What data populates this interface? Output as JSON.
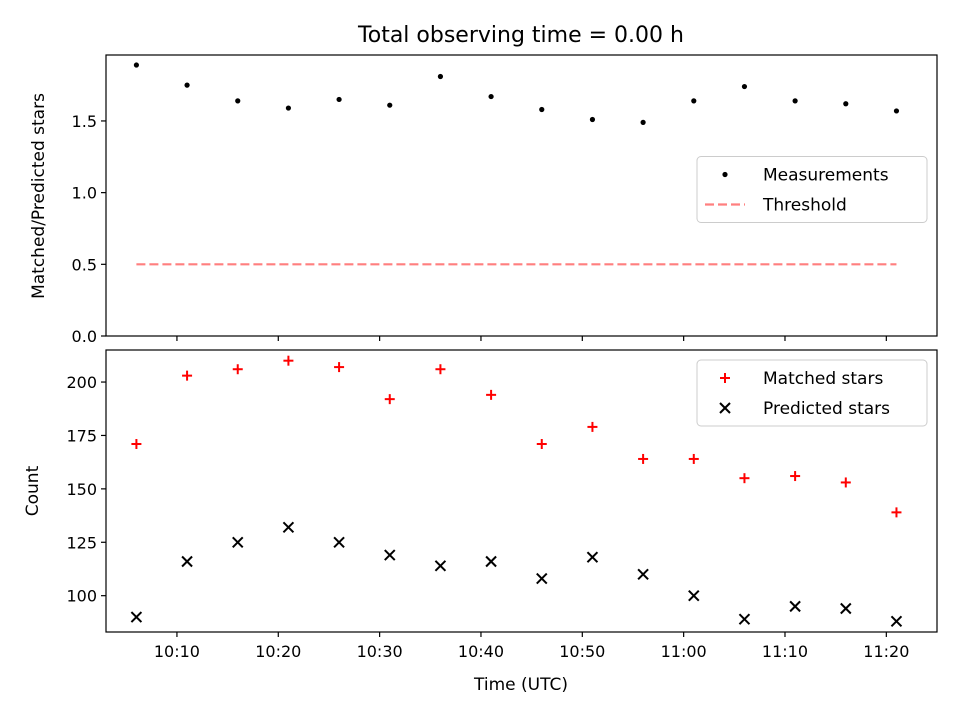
{
  "title": "Total observing time = 0.00 h",
  "chart_data": [
    {
      "type": "scatter",
      "ylabel": "Matched/Predicted stars",
      "ylim": [
        0,
        1.96
      ],
      "yticks": [
        0.0,
        0.5,
        1.0,
        1.5
      ],
      "ytick_labels": [
        "0.0",
        "0.5",
        "1.0",
        "1.5"
      ],
      "legend_position": "center-right",
      "series": [
        {
          "name": "Measurements",
          "marker": "dot",
          "color": "#000000",
          "x": [
            "10:06",
            "10:11",
            "10:16",
            "10:21",
            "10:26",
            "10:31",
            "10:36",
            "10:41",
            "10:46",
            "10:51",
            "10:56",
            "11:01",
            "11:06",
            "11:11",
            "11:16",
            "11:21"
          ],
          "y": [
            1.89,
            1.75,
            1.64,
            1.59,
            1.65,
            1.61,
            1.81,
            1.67,
            1.58,
            1.51,
            1.49,
            1.64,
            1.74,
            1.64,
            1.62,
            1.57
          ]
        },
        {
          "name": "Threshold",
          "marker": "dashed-line",
          "color": "#ff7f7f",
          "x": [
            "10:06",
            "11:21"
          ],
          "y": [
            0.5,
            0.5
          ]
        }
      ]
    },
    {
      "type": "scatter",
      "ylabel": "Count",
      "xlabel": "Time (UTC)",
      "ylim": [
        83,
        215
      ],
      "yticks": [
        100,
        125,
        150,
        175,
        200
      ],
      "ytick_labels": [
        "100",
        "125",
        "150",
        "175",
        "200"
      ],
      "legend_position": "upper-right",
      "series": [
        {
          "name": "Matched stars",
          "marker": "plus",
          "color": "#ff0000",
          "x": [
            "10:06",
            "10:11",
            "10:16",
            "10:21",
            "10:26",
            "10:31",
            "10:36",
            "10:41",
            "10:46",
            "10:51",
            "10:56",
            "11:01",
            "11:06",
            "11:11",
            "11:16",
            "11:21"
          ],
          "y": [
            171,
            203,
            206,
            210,
            207,
            192,
            206,
            194,
            171,
            179,
            164,
            164,
            155,
            156,
            153,
            139
          ]
        },
        {
          "name": "Predicted stars",
          "marker": "x",
          "color": "#000000",
          "x": [
            "10:06",
            "10:11",
            "10:16",
            "10:21",
            "10:26",
            "10:31",
            "10:36",
            "10:41",
            "10:46",
            "10:51",
            "10:56",
            "11:01",
            "11:06",
            "11:11",
            "11:16",
            "11:21"
          ],
          "y": [
            90,
            116,
            125,
            132,
            125,
            119,
            114,
            116,
            108,
            118,
            110,
            100,
            89,
            95,
            94,
            88
          ]
        }
      ]
    }
  ],
  "xaxis": {
    "xlim": [
      "10:03",
      "11:25"
    ],
    "ticks": [
      "10:10",
      "10:20",
      "10:30",
      "10:40",
      "10:50",
      "11:00",
      "11:10",
      "11:20"
    ]
  }
}
